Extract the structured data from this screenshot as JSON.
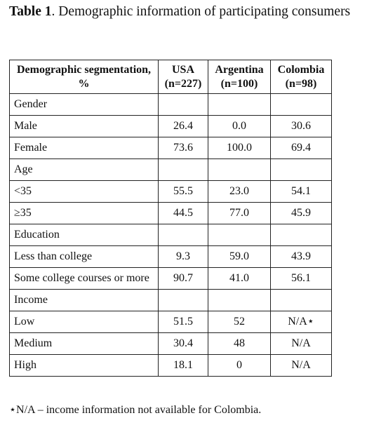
{
  "caption": {
    "label": "Table 1",
    "text": ". Demographic information of participating consumers"
  },
  "table": {
    "header": [
      "Demographic segmentation, %",
      "USA (n=227)",
      "Argentina (n=100)",
      "Colombia (n=98)"
    ],
    "rows": [
      [
        "Gender"
      ],
      [
        "Male",
        "26.4",
        "0.0",
        "30.6"
      ],
      [
        "Female",
        "73.6",
        "100.0",
        "69.4"
      ],
      [
        "Age"
      ],
      [
        "<35",
        "55.5",
        "23.0",
        "54.1"
      ],
      [
        "≥35",
        "44.5",
        "77.0",
        "45.9"
      ],
      [
        "Education"
      ],
      [
        "Less than college",
        "9.3",
        "59.0",
        "43.9"
      ],
      [
        "Some college courses or more",
        "90.7",
        "41.0",
        "56.1"
      ],
      [
        "Income"
      ],
      [
        "Low",
        "51.5",
        "52",
        "N/A⋆"
      ],
      [
        "Medium",
        "30.4",
        "48",
        "N/A"
      ],
      [
        "High",
        "18.1",
        "0",
        "N/A"
      ]
    ]
  },
  "footnote": "⋆N/A – income information not available for Colombia."
}
